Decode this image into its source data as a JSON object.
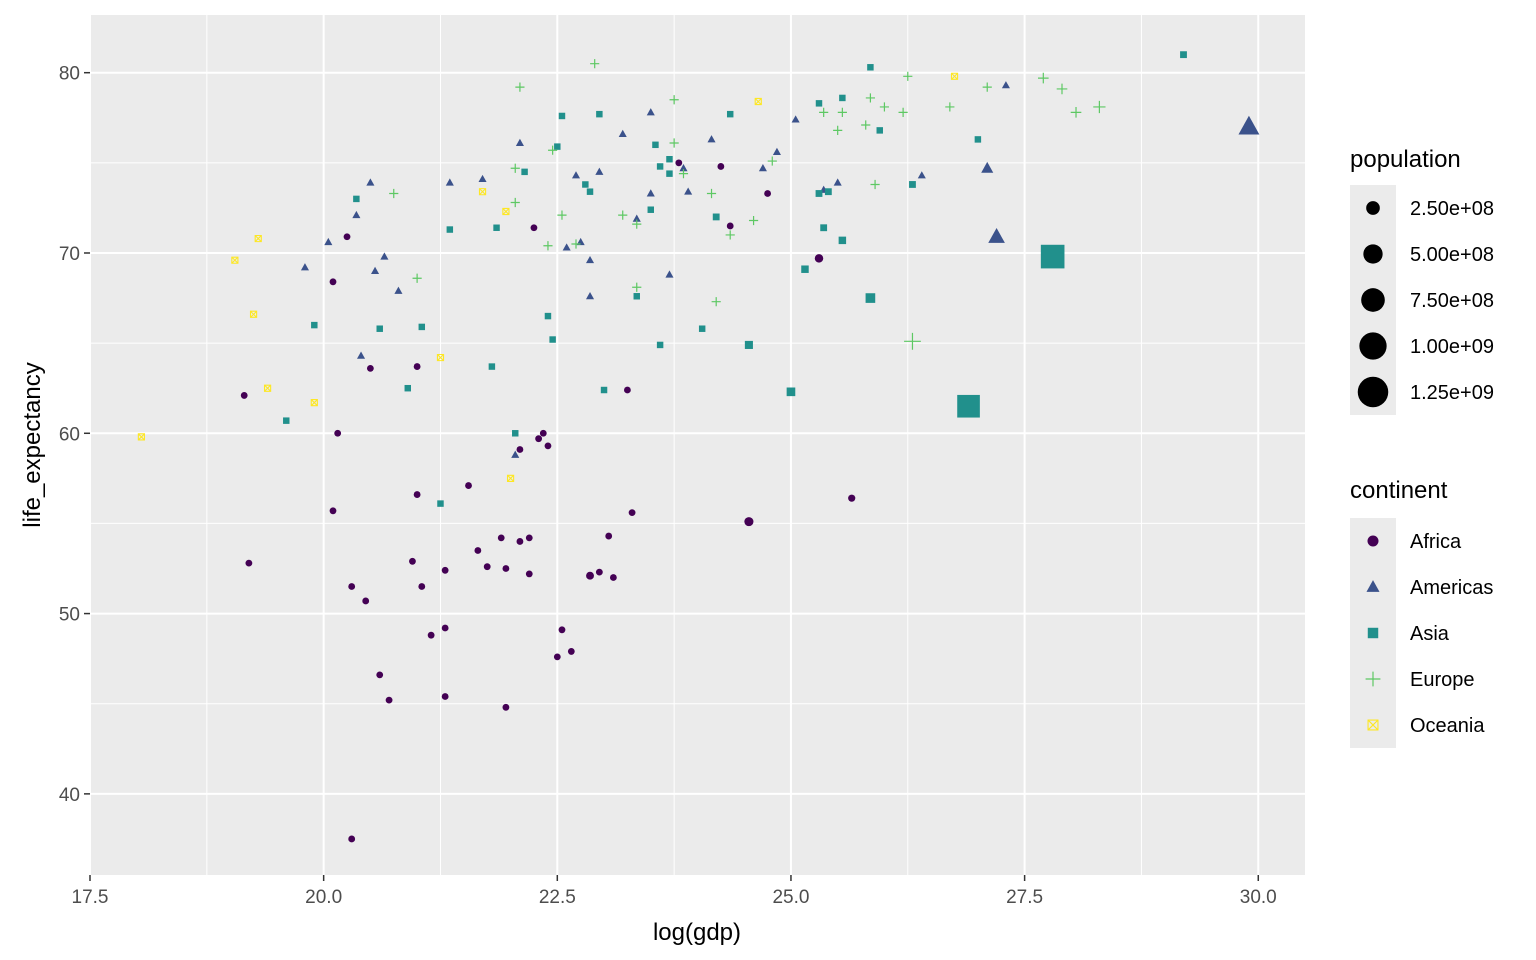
{
  "chart_data": {
    "type": "scatter",
    "title": "",
    "xlabel": "log(gdp)",
    "ylabel": "life_expectancy",
    "xlim": [
      17.5,
      30.5
    ],
    "ylim": [
      35.5,
      83.2
    ],
    "x_ticks": [
      17.5,
      20.0,
      22.5,
      25.0,
      27.5,
      30.0
    ],
    "x_tick_labels": [
      "17.5",
      "20.0",
      "22.5",
      "25.0",
      "27.5",
      "30.0"
    ],
    "y_ticks": [
      40,
      50,
      60,
      70,
      80
    ],
    "y_tick_labels": [
      "40",
      "50",
      "60",
      "70",
      "80"
    ],
    "grid": true,
    "background": "#ebebeb",
    "legends": {
      "size": {
        "title": "population",
        "values": [
          250000000,
          500000000,
          750000000,
          1000000000,
          1250000000
        ],
        "labels": [
          "2.50e+08",
          "5.00e+08",
          "7.50e+08",
          "1.00e+09",
          "1.25e+09"
        ]
      },
      "color_shape": {
        "title": "continent",
        "placement": "right",
        "entries": [
          {
            "name": "Africa",
            "color": "#440154",
            "shape": "circle"
          },
          {
            "name": "Americas",
            "color": "#3b528b",
            "shape": "triangle"
          },
          {
            "name": "Asia",
            "color": "#21908c",
            "shape": "square"
          },
          {
            "name": "Europe",
            "color": "#5dc863",
            "shape": "plus"
          },
          {
            "name": "Oceania",
            "color": "#fde725",
            "shape": "square-cross"
          }
        ]
      }
    },
    "series": [
      {
        "name": "Africa",
        "points": [
          [
            20.3,
            37.5,
            10000000
          ],
          [
            19.2,
            52.8,
            5000000
          ],
          [
            19.15,
            62.1,
            5000000
          ],
          [
            20.1,
            55.7,
            8000000
          ],
          [
            20.3,
            51.5,
            12000000
          ],
          [
            20.45,
            50.7,
            12000000
          ],
          [
            20.6,
            46.6,
            15000000
          ],
          [
            20.7,
            45.2,
            12000000
          ],
          [
            20.15,
            60.0,
            6000000
          ],
          [
            20.1,
            68.4,
            6000000
          ],
          [
            20.25,
            70.9,
            5000000
          ],
          [
            20.5,
            63.6,
            6000000
          ],
          [
            21.0,
            63.7,
            10000000
          ],
          [
            20.95,
            52.9,
            6000000
          ],
          [
            21.0,
            56.6,
            10000000
          ],
          [
            21.05,
            51.5,
            15000000
          ],
          [
            21.15,
            48.8,
            6000000
          ],
          [
            21.3,
            52.4,
            12000000
          ],
          [
            21.3,
            49.2,
            12000000
          ],
          [
            21.3,
            45.4,
            15000000
          ],
          [
            21.55,
            57.1,
            15000000
          ],
          [
            21.65,
            53.5,
            15000000
          ],
          [
            21.75,
            52.6,
            15000000
          ],
          [
            21.9,
            54.2,
            12000000
          ],
          [
            21.95,
            52.5,
            10000000
          ],
          [
            21.95,
            44.8,
            15000000
          ],
          [
            22.1,
            59.1,
            20000000
          ],
          [
            22.1,
            54.0,
            12000000
          ],
          [
            22.2,
            54.2,
            30000000
          ],
          [
            22.2,
            52.2,
            20000000
          ],
          [
            22.25,
            71.4,
            6000000
          ],
          [
            22.3,
            59.7,
            15000000
          ],
          [
            22.35,
            60.0,
            25000000
          ],
          [
            22.4,
            59.3,
            5000000
          ],
          [
            22.5,
            47.6,
            10000000
          ],
          [
            22.55,
            49.1,
            30000000
          ],
          [
            22.65,
            47.9,
            15000000
          ],
          [
            22.85,
            52.1,
            60000000
          ],
          [
            22.95,
            52.3,
            40000000
          ],
          [
            23.05,
            54.3,
            30000000
          ],
          [
            23.1,
            52.0,
            30000000
          ],
          [
            23.25,
            62.4,
            30000000
          ],
          [
            23.3,
            55.6,
            30000000
          ],
          [
            23.8,
            75.0,
            12000000
          ],
          [
            24.25,
            74.8,
            10000000
          ],
          [
            24.35,
            71.5,
            30000000
          ],
          [
            24.55,
            55.1,
            80000000
          ],
          [
            24.75,
            73.3,
            30000000
          ],
          [
            25.3,
            69.7,
            70000000
          ],
          [
            25.65,
            56.4,
            50000000
          ]
        ]
      },
      {
        "name": "Americas",
        "points": [
          [
            19.8,
            69.2,
            3000000
          ],
          [
            20.05,
            70.6,
            3000000
          ],
          [
            20.35,
            72.1,
            3000000
          ],
          [
            20.5,
            73.9,
            3000000
          ],
          [
            20.55,
            69.0,
            5000000
          ],
          [
            20.65,
            69.8,
            5000000
          ],
          [
            20.4,
            64.3,
            8000000
          ],
          [
            20.8,
            67.9,
            6000000
          ],
          [
            21.35,
            73.9,
            4000000
          ],
          [
            21.7,
            74.1,
            5000000
          ],
          [
            22.05,
            58.8,
            10000000
          ],
          [
            22.1,
            76.1,
            8000000
          ],
          [
            22.6,
            70.3,
            8000000
          ],
          [
            22.7,
            74.3,
            8000000
          ],
          [
            22.75,
            70.6,
            6000000
          ],
          [
            22.85,
            69.6,
            6000000
          ],
          [
            22.85,
            67.6,
            8000000
          ],
          [
            22.95,
            74.5,
            6000000
          ],
          [
            23.2,
            76.6,
            8000000
          ],
          [
            23.35,
            71.9,
            10000000
          ],
          [
            23.5,
            73.3,
            15000000
          ],
          [
            23.5,
            77.8,
            6000000
          ],
          [
            23.7,
            68.8,
            12000000
          ],
          [
            23.85,
            74.7,
            15000000
          ],
          [
            23.9,
            73.4,
            10000000
          ],
          [
            24.15,
            76.3,
            12000000
          ],
          [
            24.7,
            74.7,
            30000000
          ],
          [
            24.85,
            75.6,
            12000000
          ],
          [
            25.05,
            77.4,
            40000000
          ],
          [
            25.35,
            73.5,
            40000000
          ],
          [
            25.5,
            73.9,
            30000000
          ],
          [
            26.4,
            74.3,
            40000000
          ],
          [
            27.1,
            74.7,
            100000000
          ],
          [
            27.2,
            70.9,
            190000000
          ],
          [
            27.3,
            79.3,
            30000000
          ],
          [
            29.9,
            77.0,
            300000000
          ]
        ]
      },
      {
        "name": "Asia",
        "points": [
          [
            19.6,
            60.7,
            10000000
          ],
          [
            19.9,
            66.0,
            5000000
          ],
          [
            20.35,
            73.0,
            5000000
          ],
          [
            20.6,
            65.8,
            10000000
          ],
          [
            20.9,
            62.5,
            10000000
          ],
          [
            21.05,
            65.9,
            12000000
          ],
          [
            21.25,
            56.1,
            10000000
          ],
          [
            21.35,
            71.3,
            10000000
          ],
          [
            21.8,
            63.7,
            8000000
          ],
          [
            21.85,
            71.4,
            10000000
          ],
          [
            22.05,
            60.0,
            15000000
          ],
          [
            22.15,
            74.5,
            8000000
          ],
          [
            22.4,
            66.5,
            10000000
          ],
          [
            22.45,
            65.2,
            20000000
          ],
          [
            22.5,
            75.9,
            5000000
          ],
          [
            22.55,
            77.6,
            5000000
          ],
          [
            22.8,
            73.8,
            8000000
          ],
          [
            22.85,
            73.4,
            12000000
          ],
          [
            22.95,
            77.7,
            6000000
          ],
          [
            23.0,
            62.4,
            20000000
          ],
          [
            23.35,
            67.6,
            20000000
          ],
          [
            23.5,
            72.4,
            20000000
          ],
          [
            23.55,
            76.0,
            8000000
          ],
          [
            23.6,
            74.8,
            8000000
          ],
          [
            23.6,
            64.9,
            15000000
          ],
          [
            23.7,
            75.2,
            8000000
          ],
          [
            23.7,
            74.4,
            10000000
          ],
          [
            24.05,
            65.8,
            20000000
          ],
          [
            24.2,
            72.0,
            50000000
          ],
          [
            24.35,
            77.7,
            8000000
          ],
          [
            24.55,
            64.9,
            70000000
          ],
          [
            25.0,
            62.3,
            80000000
          ],
          [
            25.15,
            69.1,
            60000000
          ],
          [
            25.3,
            78.3,
            8000000
          ],
          [
            25.3,
            73.3,
            50000000
          ],
          [
            25.35,
            71.4,
            50000000
          ],
          [
            25.4,
            73.4,
            50000000
          ],
          [
            25.55,
            78.6,
            12000000
          ],
          [
            25.55,
            70.7,
            60000000
          ],
          [
            25.85,
            67.5,
            100000000
          ],
          [
            25.85,
            80.3,
            10000000
          ],
          [
            25.95,
            76.8,
            20000000
          ],
          [
            26.3,
            73.8,
            50000000
          ],
          [
            27.0,
            76.3,
            40000000
          ],
          [
            26.9,
            61.5,
            550000000
          ],
          [
            27.8,
            69.8,
            600000000
          ],
          [
            29.2,
            81.0,
            50000000
          ]
        ]
      },
      {
        "name": "Europe",
        "points": [
          [
            20.75,
            73.3,
            4000000
          ],
          [
            21.0,
            68.6,
            5000000
          ],
          [
            22.05,
            74.7,
            5000000
          ],
          [
            22.05,
            72.8,
            5000000
          ],
          [
            22.1,
            79.2,
            3000000
          ],
          [
            22.4,
            70.4,
            5000000
          ],
          [
            22.45,
            75.7,
            5000000
          ],
          [
            22.55,
            72.1,
            5000000
          ],
          [
            22.7,
            70.5,
            6000000
          ],
          [
            22.9,
            80.5,
            3000000
          ],
          [
            23.2,
            72.1,
            5000000
          ],
          [
            23.35,
            68.1,
            8000000
          ],
          [
            23.35,
            71.6,
            5000000
          ],
          [
            23.75,
            76.1,
            5000000
          ],
          [
            23.75,
            78.5,
            3000000
          ],
          [
            23.85,
            74.4,
            5000000
          ],
          [
            24.15,
            73.3,
            8000000
          ],
          [
            24.2,
            67.3,
            15000000
          ],
          [
            24.35,
            71.0,
            8000000
          ],
          [
            24.6,
            71.8,
            8000000
          ],
          [
            24.8,
            75.1,
            8000000
          ],
          [
            25.35,
            77.8,
            8000000
          ],
          [
            25.5,
            76.8,
            10000000
          ],
          [
            25.55,
            77.8,
            10000000
          ],
          [
            25.8,
            77.1,
            10000000
          ],
          [
            25.85,
            78.6,
            10000000
          ],
          [
            25.9,
            73.8,
            40000000
          ],
          [
            26.0,
            78.1,
            8000000
          ],
          [
            26.2,
            77.8,
            10000000
          ],
          [
            26.25,
            79.8,
            8000000
          ],
          [
            26.3,
            65.1,
            150000000
          ],
          [
            26.7,
            78.1,
            20000000
          ],
          [
            27.1,
            79.2,
            40000000
          ],
          [
            27.7,
            79.7,
            60000000
          ],
          [
            27.9,
            79.1,
            60000000
          ],
          [
            28.05,
            77.8,
            60000000
          ],
          [
            28.3,
            78.1,
            80000000
          ]
        ]
      },
      {
        "name": "Oceania",
        "points": [
          [
            18.05,
            59.8,
            1000000
          ],
          [
            19.05,
            69.6,
            1000000
          ],
          [
            19.3,
            70.8,
            1000000
          ],
          [
            19.25,
            66.6,
            1000000
          ],
          [
            19.4,
            62.5,
            1000000
          ],
          [
            19.9,
            61.7,
            1000000
          ],
          [
            21.25,
            64.2,
            1000000
          ],
          [
            21.7,
            73.4,
            2000000
          ],
          [
            21.95,
            72.3,
            1000000
          ],
          [
            22.0,
            57.5,
            5000000
          ],
          [
            24.65,
            78.4,
            3000000
          ],
          [
            26.75,
            79.8,
            15000000
          ]
        ]
      }
    ]
  }
}
